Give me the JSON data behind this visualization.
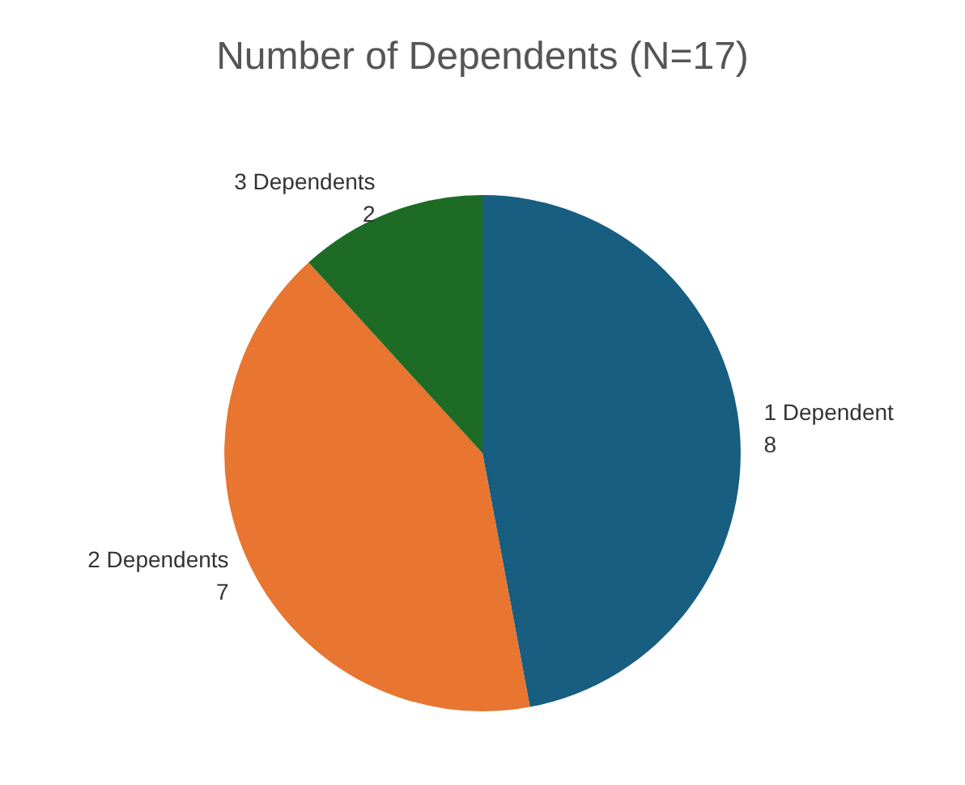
{
  "chart_data": {
    "type": "pie",
    "title": "Number of Dependents (N=17)",
    "categories": [
      "1 Dependent",
      "2 Dependents",
      "3 Dependents"
    ],
    "values": [
      8,
      7,
      2
    ],
    "colors": [
      "#175e80",
      "#e87530",
      "#1e6b25"
    ],
    "data_labels": true,
    "legend": false
  }
}
